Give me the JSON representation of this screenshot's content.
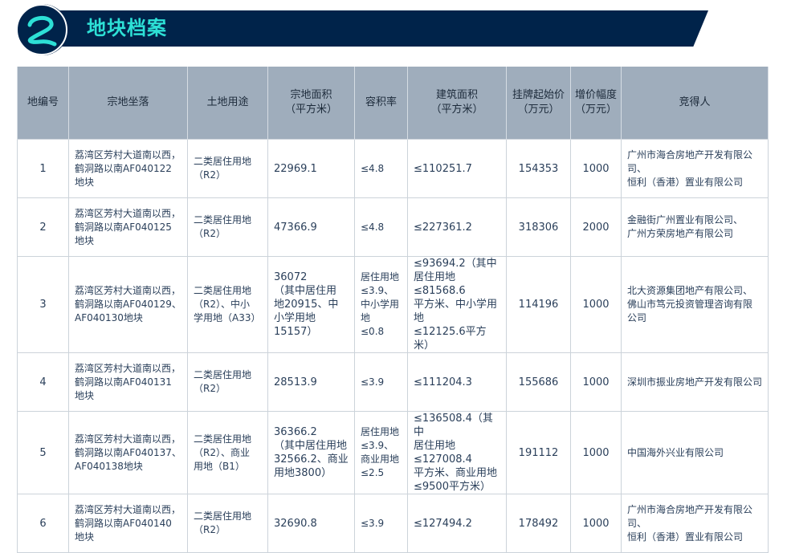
{
  "header": {
    "badge_number": "2",
    "title": "地块档案",
    "colors": {
      "banner": "#00234a",
      "accent": "#2de0d6",
      "table_header": "#9fadbc"
    }
  },
  "table": {
    "columns": [
      "地编号",
      "宗地坐落",
      "土地用途",
      "宗地面积\n（平方米）",
      "容积率",
      "建筑面积\n（平方米）",
      "挂牌起始价\n（万元）",
      "增价幅度\n（万元）",
      "竞得人"
    ],
    "rows": [
      [
        "1",
        "荔湾区芳村大道南以西，\n鹤洞路以南AF040122\n地块",
        "二类居住用地\n（R2）",
        "22969.1",
        "≤4.8",
        "≤110251.7",
        "154353",
        "1000",
        "广州市海合房地产开发有限公司、\n恒利（香港）置业有限公司"
      ],
      [
        "2",
        "荔湾区芳村大道南以西，\n鹤洞路以南AF040125\n地块",
        "二类居住用地\n（R2）",
        "47366.9",
        "≤4.8",
        "≤227361.2",
        "318306",
        "2000",
        "金融街广州置业有限公司、\n广州方荣房地产有限公司"
      ],
      [
        "3",
        "荔湾区芳村大道南以西，\n鹤洞路以南AF040129、\nAF040130地块",
        "二类居住用地\n（R2）、中小\n学用地（A33）",
        "36072\n（其中居住用\n地20915、中\n小学用地15157）",
        "居住用地\n≤3.9、\n中小学用地\n≤0.8",
        "≤93694.2（其中\n居住用地≤81568.6\n平方米、中小学用地\n≤12125.6平方米）",
        "114196",
        "1000",
        " 北大资源集团地产有限公司、\n 佛山市笃元投资管理咨询有限\n 公司"
      ],
      [
        "4",
        "荔湾区芳村大道南以西，\n鹤洞路以南AF040131\n地块",
        "二类居住用地\n（R2）",
        "28513.9",
        "≤3.9",
        "≤111204.3",
        "155686",
        "1000",
        "深圳市振业房地产开发有限公司"
      ],
      [
        "5",
        "荔湾区芳村大道南以西，\n鹤洞路以南AF040137、\nAF040138地块",
        "二类居住用地\n（R2）、商业\n用地（B1）",
        "36366.2\n（其中居住用地\n32566.2、商业\n用地3800）",
        "居住用地\n≤3.9、\n商业用地\n≤2.5",
        "≤136508.4（其中\n居住用地≤127008.4\n平方米、商业用地\n≤9500平方米）",
        "191112",
        "1000",
        "中国海外兴业有限公司"
      ],
      [
        "6",
        "荔湾区芳村大道南以西，\n鹤洞路以南AF040140\n地块",
        "二类居住用地\n（R2）",
        "32690.8",
        "≤3.9",
        "≤127494.2",
        "178492",
        "1000",
        "广州市海合房地产开发有限公司、\n恒利（香港）置业有限公司"
      ]
    ]
  }
}
